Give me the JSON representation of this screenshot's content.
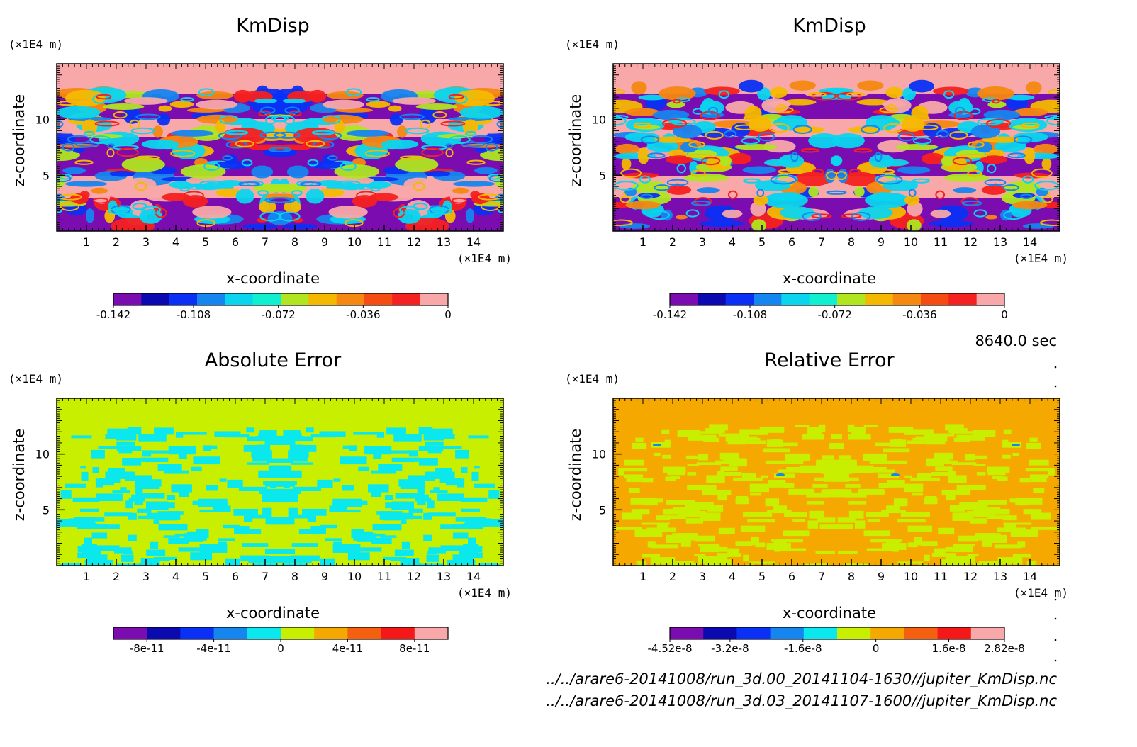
{
  "figure": {
    "time_label": "8640.0 sec",
    "files": [
      "../../arare6-20141008/run_3d.00_20141104-1630//jupiter_KmDisp.nc",
      "../../arare6-20141008/run_3d.03_20141107-1600//jupiter_KmDisp.nc"
    ]
  },
  "chart_data": [
    {
      "type": "heatmap",
      "title": "KmDisp",
      "xlabel": "x-coordinate",
      "ylabel": "z-coordinate",
      "x_unit": "(×1E4 m)",
      "y_unit": "(×1E4 m)",
      "xlim": [
        0,
        15
      ],
      "ylim": [
        0,
        15
      ],
      "x_ticks": [
        "1",
        "2",
        "3",
        "4",
        "5",
        "6",
        "7",
        "8",
        "9",
        "10",
        "11",
        "12",
        "13",
        "14"
      ],
      "y_ticks": [
        "5",
        "10"
      ],
      "pattern": "kmdisp",
      "colorbar": {
        "colors": [
          "#7a0cb0",
          "#0a0ab0",
          "#0a30f5",
          "#1585f0",
          "#0ad5ee",
          "#10f0d0",
          "#b0e520",
          "#f5b800",
          "#f58810",
          "#f54c14",
          "#f52020",
          "#f8a8a8"
        ],
        "labels": [
          "-0.142",
          "-0.108",
          "-0.072",
          "-0.036",
          "0"
        ],
        "label_values": [
          -0.142,
          -0.108,
          -0.072,
          -0.036,
          0
        ],
        "range": [
          -0.142,
          0
        ]
      }
    },
    {
      "type": "heatmap",
      "title": "KmDisp",
      "xlabel": "x-coordinate",
      "ylabel": "z-coordinate",
      "x_unit": "(×1E4 m)",
      "y_unit": "(×1E4 m)",
      "xlim": [
        0,
        15
      ],
      "ylim": [
        0,
        15
      ],
      "x_ticks": [
        "1",
        "2",
        "3",
        "4",
        "5",
        "6",
        "7",
        "8",
        "9",
        "10",
        "11",
        "12",
        "13",
        "14"
      ],
      "y_ticks": [
        "5",
        "10"
      ],
      "pattern": "kmdisp",
      "colorbar": {
        "colors": [
          "#7a0cb0",
          "#0a0ab0",
          "#0a30f5",
          "#1585f0",
          "#0ad5ee",
          "#10f0d0",
          "#b0e520",
          "#f5b800",
          "#f58810",
          "#f54c14",
          "#f52020",
          "#f8a8a8"
        ],
        "labels": [
          "-0.142",
          "-0.108",
          "-0.072",
          "-0.036",
          "0"
        ],
        "label_values": [
          -0.142,
          -0.108,
          -0.072,
          -0.036,
          0
        ],
        "range": [
          -0.142,
          0
        ]
      }
    },
    {
      "type": "heatmap",
      "title": "Absolute Error",
      "xlabel": "x-coordinate",
      "ylabel": "z-coordinate",
      "x_unit": "(×1E4 m)",
      "y_unit": "(×1E4 m)",
      "xlim": [
        0,
        15
      ],
      "ylim": [
        0,
        15
      ],
      "x_ticks": [
        "1",
        "2",
        "3",
        "4",
        "5",
        "6",
        "7",
        "8",
        "9",
        "10",
        "11",
        "12",
        "13",
        "14"
      ],
      "y_ticks": [
        "5",
        "10"
      ],
      "pattern": "abs",
      "colorbar": {
        "colors": [
          "#7a0cb0",
          "#0a0ab0",
          "#0a30f5",
          "#1585f0",
          "#0ae8ee",
          "#c8ee00",
          "#f5a800",
          "#f56010",
          "#f51818",
          "#f8a8a8"
        ],
        "labels": [
          "-8e-11",
          "-4e-11",
          "0",
          "4e-11",
          "8e-11"
        ],
        "label_values": [
          -8e-11,
          -4e-11,
          0,
          4e-11,
          8e-11
        ],
        "range": [
          -1e-10,
          1e-10
        ]
      }
    },
    {
      "type": "heatmap",
      "title": "Relative Error",
      "xlabel": "x-coordinate",
      "ylabel": "z-coordinate",
      "x_unit": "(×1E4 m)",
      "y_unit": "(×1E4 m)",
      "xlim": [
        0,
        15
      ],
      "ylim": [
        0,
        15
      ],
      "x_ticks": [
        "1",
        "2",
        "3",
        "4",
        "5",
        "6",
        "7",
        "8",
        "9",
        "10",
        "11",
        "12",
        "13",
        "14"
      ],
      "y_ticks": [
        "5",
        "10"
      ],
      "pattern": "rel",
      "colorbar": {
        "colors": [
          "#7a0cb0",
          "#0a0ab0",
          "#0a30f5",
          "#1585f0",
          "#0ae8ee",
          "#c8ee00",
          "#f5a800",
          "#f56010",
          "#f51818",
          "#f8a8a8"
        ],
        "labels": [
          "-4.52e-8",
          "-3.2e-8",
          "-1.6e-8",
          "0",
          "1.6e-8",
          "2.82e-8"
        ],
        "label_values": [
          -4.52e-08,
          -3.2e-08,
          -1.6e-08,
          0,
          1.6e-08,
          2.82e-08
        ],
        "range": [
          -4.52e-08,
          2.82e-08
        ]
      }
    }
  ]
}
